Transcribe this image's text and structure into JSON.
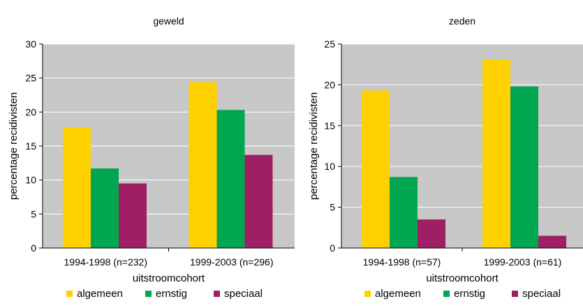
{
  "chart_data": [
    {
      "type": "bar",
      "title": "geweld",
      "xlabel": "uitstroomcohort",
      "ylabel": "percentage recidivisten",
      "categories": [
        "1994-1998 (n=232)",
        "1999-2003 (n=296)"
      ],
      "ylim": [
        0,
        30
      ],
      "yticks": [
        0,
        5,
        10,
        15,
        20,
        25,
        30
      ],
      "grid": true,
      "legend_position": "bottom",
      "series": [
        {
          "name": "algemeen",
          "color": "#ffd100",
          "values": [
            17.7,
            24.4
          ]
        },
        {
          "name": "ernstig",
          "color": "#00a650",
          "values": [
            11.7,
            20.3
          ]
        },
        {
          "name": "speciaal",
          "color": "#9e1f63",
          "values": [
            9.5,
            13.7
          ]
        }
      ]
    },
    {
      "type": "bar",
      "title": "zeden",
      "xlabel": "uitstroomcohort",
      "ylabel": "percentage recidivisten",
      "categories": [
        "1994-1998 (n=57)",
        "1999-2003 (n=61)"
      ],
      "ylim": [
        0,
        25
      ],
      "yticks": [
        0,
        5,
        10,
        15,
        20,
        25
      ],
      "grid": true,
      "legend_position": "bottom",
      "series": [
        {
          "name": "algemeen",
          "color": "#ffd100",
          "values": [
            19.3,
            23.1
          ]
        },
        {
          "name": "ernstig",
          "color": "#00a650",
          "values": [
            8.7,
            19.8
          ]
        },
        {
          "name": "speciaal",
          "color": "#9e1f63",
          "values": [
            3.5,
            1.5
          ]
        }
      ]
    }
  ],
  "style": {
    "plot_background": "#c8c8c8",
    "grid_color": "#ffffff"
  }
}
